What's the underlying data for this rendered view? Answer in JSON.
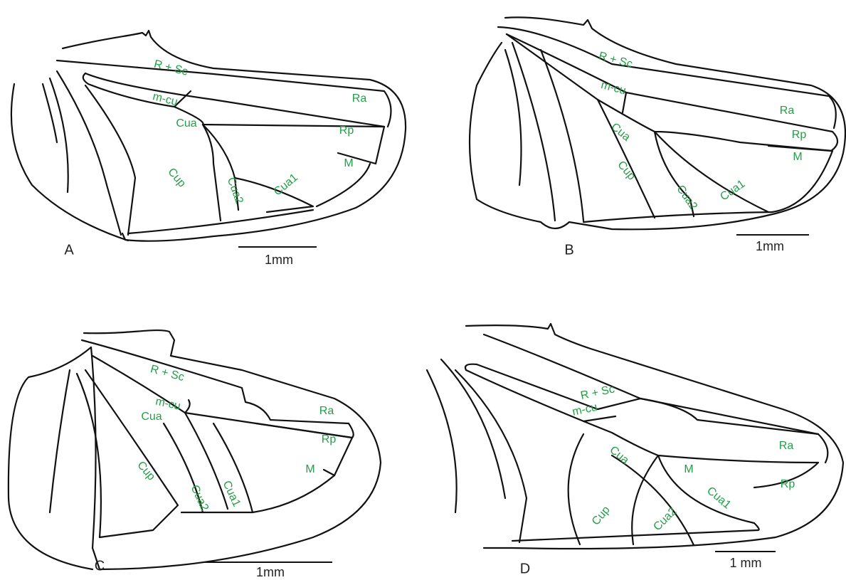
{
  "panels": [
    {
      "label": "A",
      "scale": "1mm",
      "veins": [
        "R + Sc",
        "m-cu",
        "Ra",
        "Cua",
        "Rp",
        "M",
        "Cup",
        "Cua2",
        "Cua1"
      ]
    },
    {
      "label": "B",
      "scale": "1mm",
      "veins": [
        "R + Sc",
        "m-cu",
        "Ra",
        "Cua",
        "Rp",
        "M",
        "Cup",
        "Cua2",
        "Cua1"
      ]
    },
    {
      "label": "C",
      "scale": "1mm",
      "veins": [
        "R + Sc",
        "m-cu",
        "Cua",
        "Ra",
        "Rp",
        "M",
        "Cup",
        "Cua2",
        "Cua1"
      ]
    },
    {
      "label": "D",
      "scale": "1 mm",
      "veins": [
        "R + Sc",
        "m-cu",
        "M",
        "Ra",
        "Cua",
        "Rp",
        "Cup",
        "Cua2",
        "Cua1"
      ]
    }
  ]
}
